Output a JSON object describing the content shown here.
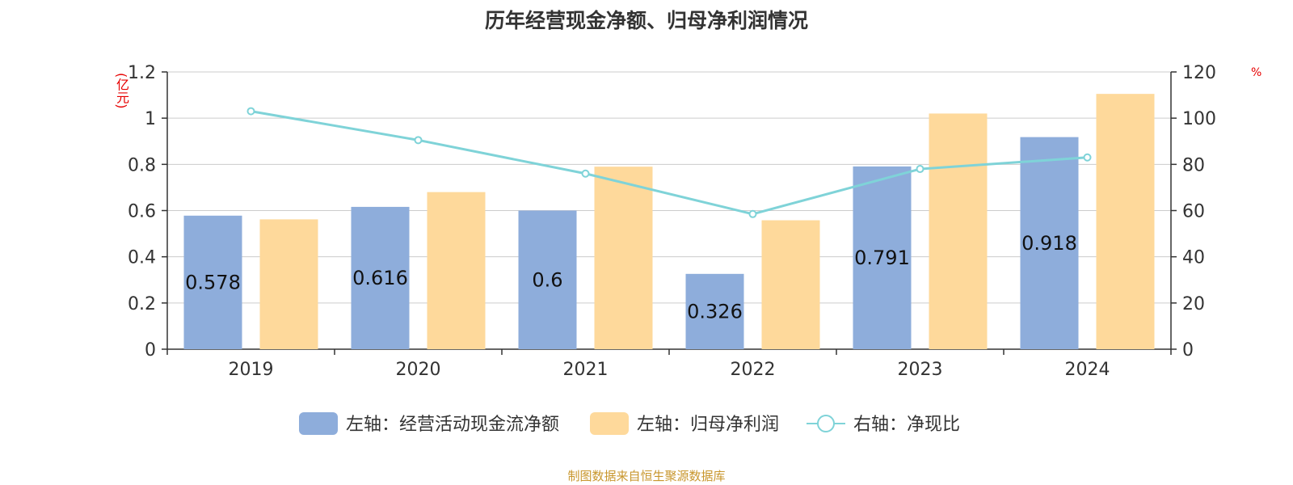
{
  "title": "历年经营现金净额、归母净利润情况",
  "left_axis_unit": "(亿元)",
  "right_axis_unit": "%",
  "source": "制图数据来自恒生聚源数据库",
  "colors": {
    "cash_flow": "#8eaddb",
    "net_profit": "#fed99b",
    "ratio": "#7fd3d8",
    "axis": "#333333",
    "grid": "#cccccc"
  },
  "chart_data": {
    "type": "bar",
    "categories": [
      "2019",
      "2020",
      "2021",
      "2022",
      "2023",
      "2024"
    ],
    "left_axis": {
      "ylim": [
        0,
        1.2
      ],
      "ticks": [
        "0",
        "0.2",
        "0.4",
        "0.6",
        "0.8",
        "1",
        "1.2"
      ]
    },
    "right_axis": {
      "ylim": [
        0,
        120
      ],
      "ticks": [
        "0",
        "20",
        "40",
        "60",
        "80",
        "100",
        "120"
      ]
    },
    "grid": true,
    "legend_position": "bottom",
    "series": [
      {
        "name": "左轴：经营活动现金流净额",
        "type": "bar",
        "axis": "left",
        "values": [
          0.578,
          0.616,
          0.6,
          0.326,
          0.791,
          0.918
        ],
        "labels": [
          "0.578",
          "0.616",
          "0.6",
          "0.326",
          "0.791",
          "0.918"
        ]
      },
      {
        "name": "左轴：归母净利润",
        "type": "bar",
        "axis": "left",
        "values": [
          0.562,
          0.68,
          0.79,
          0.558,
          1.02,
          1.105
        ]
      },
      {
        "name": "右轴：净现比",
        "type": "line",
        "axis": "right",
        "values": [
          103,
          90.5,
          76,
          58.5,
          78,
          83
        ]
      }
    ]
  }
}
